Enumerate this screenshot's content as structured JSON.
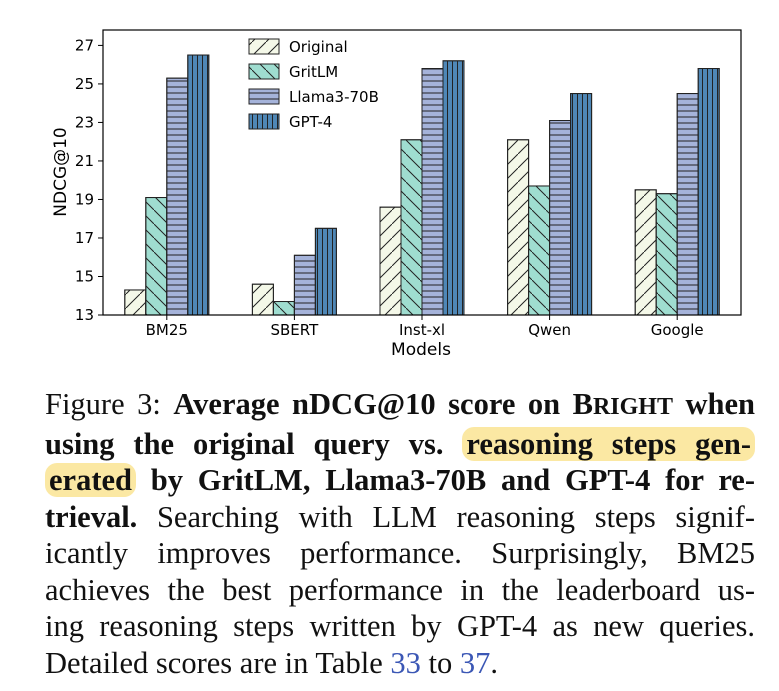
{
  "chart_data": {
    "type": "bar",
    "xlabel": "Models",
    "ylabel": "NDCG@10",
    "ylim": [
      13,
      27.8
    ],
    "yticks": [
      13,
      15,
      17,
      19,
      21,
      23,
      25,
      27
    ],
    "categories": [
      "BM25",
      "SBERT",
      "Inst-xl",
      "Qwen",
      "Google"
    ],
    "series": [
      {
        "name": "Original",
        "values": [
          14.3,
          14.6,
          18.6,
          22.1,
          19.5
        ],
        "fill": "#f4f8e8",
        "hatch": "diag"
      },
      {
        "name": "GritLM",
        "values": [
          19.1,
          13.7,
          22.1,
          19.7,
          19.3
        ],
        "fill": "#9fddd0",
        "hatch": "backdiag"
      },
      {
        "name": "Llama3-70B",
        "values": [
          25.3,
          16.1,
          25.8,
          23.1,
          24.5
        ],
        "fill": "#a5b3da",
        "hatch": "horiz"
      },
      {
        "name": "GPT-4",
        "values": [
          26.5,
          17.5,
          26.2,
          24.5,
          25.8
        ],
        "fill": "#4f87b6",
        "hatch": "vert"
      }
    ],
    "legend_position": "top-left",
    "grid": false
  },
  "caption": {
    "prefix": "Figure 3: ",
    "bold_1": "Average nDCG@10 score on ",
    "bright_B": "B",
    "bright_rest": "RIGHT",
    "bold_2": " when using the original query vs. ",
    "highlight_1": "reasoning steps gen-",
    "highlight_2": "erated",
    "bold_3": " by GritLM, Llama3-70B and GPT-4 for re-",
    "bold_4": "trieval.",
    "body_1": " Searching with LLM reasoning steps signif-",
    "body_2": "icantly improves performance.  Surprisingly, BM25",
    "body_3": "achieves the best performance in the leaderboard us-",
    "body_4": "ing reasoning steps written by GPT-4 as new queries.",
    "body_5": "Detailed scores are in Table ",
    "ref_1": "33",
    "body_6": " to ",
    "ref_2": "37",
    "body_7": "."
  }
}
